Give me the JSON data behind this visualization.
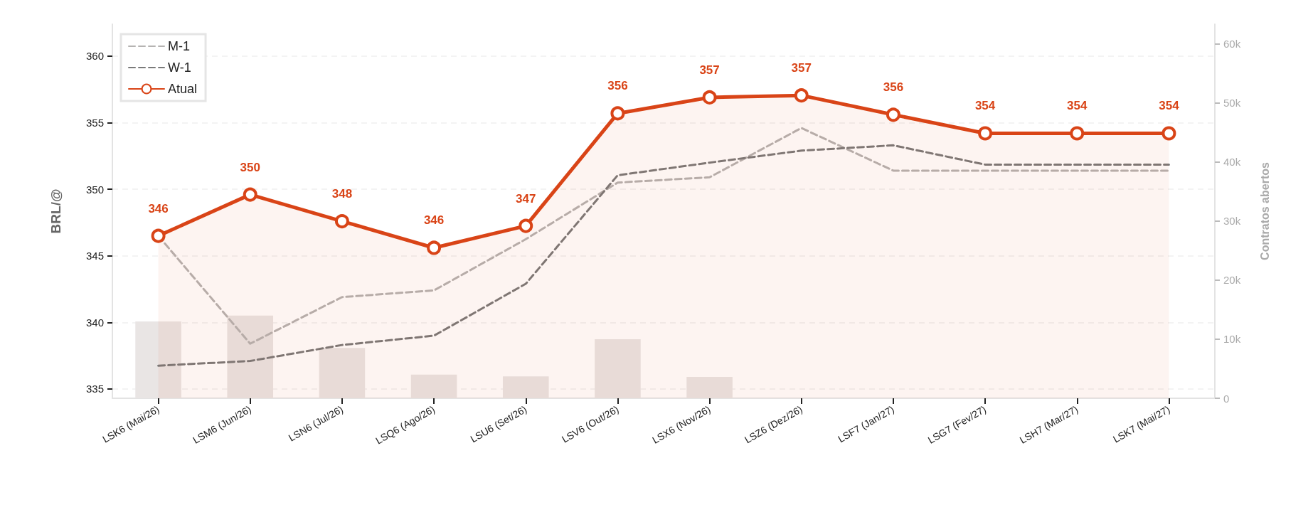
{
  "chart_data": {
    "type": "line",
    "ylabel": "BRL/@",
    "y2label": "Contratos abertos",
    "categories": [
      "LSK6 (Mai/26)",
      "LSM6 (Jun/26)",
      "LSN6 (Jul/26)",
      "LSQ6 (Ago/26)",
      "LSU6 (Set/26)",
      "LSV6 (Out/26)",
      "LSX6 (Nov/26)",
      "LSZ6 (Dez/26)",
      "LSF7 (Jan/27)",
      "LSG7 (Fev/27)",
      "LSH7 (Mar/27)",
      "LSK7 (Mai/27)"
    ],
    "series": [
      {
        "type": "bar",
        "axis": "y2",
        "color": "#e9e5e4",
        "values": [
          13000,
          14000,
          8500,
          4000,
          3700,
          10000,
          3600,
          0,
          0,
          0,
          0,
          0
        ]
      },
      {
        "name": "M-1",
        "color": "#b5b3b2",
        "line_style": "dashed",
        "marker": "none",
        "values": [
          346.5,
          338.4,
          341.9,
          342.4,
          346.25,
          350.5,
          350.9,
          354.6,
          351.4,
          351.4,
          351.4,
          351.4
        ]
      },
      {
        "name": "W-1",
        "color": "#7a7a7a",
        "line_style": "dashed",
        "marker": "none",
        "values": [
          336.75,
          337.1,
          338.3,
          339.0,
          342.9,
          351.05,
          352.0,
          352.9,
          353.3,
          351.85,
          351.85,
          351.85
        ]
      },
      {
        "name": "Atual",
        "type": "area",
        "color": "#d94417",
        "line_style": "solid",
        "marker": "circle",
        "values": [
          346.5,
          349.6,
          347.6,
          345.6,
          347.25,
          355.7,
          356.9,
          357.05,
          355.6,
          354.2,
          354.2,
          354.2
        ],
        "value_labels": [
          "346",
          "350",
          "348",
          "346",
          "347",
          "356",
          "357",
          "357",
          "356",
          "354",
          "354",
          "354"
        ]
      }
    ],
    "ylim": [
      334.3,
      362.4
    ],
    "yticks": [
      335,
      340,
      345,
      350,
      355,
      360
    ],
    "y2lim": [
      0,
      63300
    ],
    "y2ticks": [
      0,
      {
        "value": 10000,
        "label": "10k"
      },
      {
        "value": 20000,
        "label": "20k"
      },
      {
        "value": 30000,
        "label": "30k"
      },
      {
        "value": 40000,
        "label": "40k"
      },
      {
        "value": 50000,
        "label": "50k"
      },
      {
        "value": 60000,
        "label": "60k"
      }
    ],
    "grid": "y",
    "legend": "top left"
  }
}
